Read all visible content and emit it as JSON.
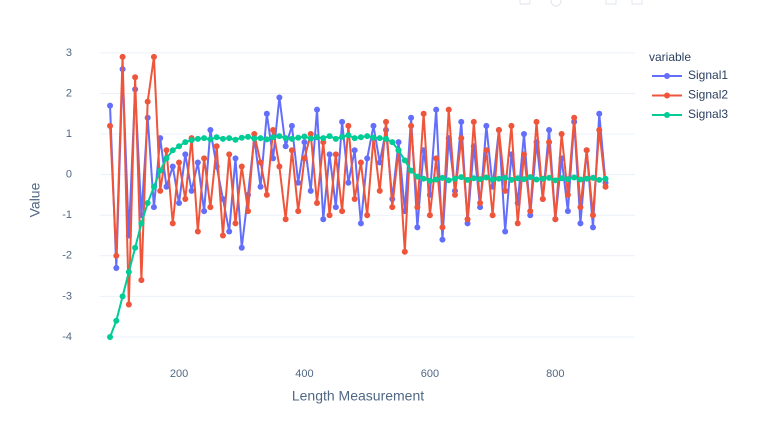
{
  "chart_data": {
    "type": "line",
    "xlabel": "Length Measurement",
    "ylabel": "Value",
    "legend_title": "variable",
    "x": [
      90,
      100,
      110,
      120,
      130,
      140,
      150,
      160,
      170,
      180,
      190,
      200,
      210,
      220,
      230,
      240,
      250,
      260,
      270,
      280,
      290,
      300,
      310,
      320,
      330,
      340,
      350,
      360,
      370,
      380,
      390,
      400,
      410,
      420,
      430,
      440,
      450,
      460,
      470,
      480,
      490,
      500,
      510,
      520,
      530,
      540,
      550,
      560,
      570,
      580,
      590,
      600,
      610,
      620,
      630,
      640,
      650,
      660,
      670,
      680,
      690,
      700,
      710,
      720,
      730,
      740,
      750,
      760,
      770,
      780,
      790,
      800,
      810,
      820,
      830,
      840,
      850,
      860,
      870,
      880
    ],
    "series": [
      {
        "name": "Signal1",
        "color": "#636efa",
        "values": [
          1.7,
          -2.3,
          2.6,
          -1.5,
          2.1,
          -1.0,
          1.4,
          -0.8,
          0.9,
          -0.3,
          0.2,
          -0.7,
          0.5,
          -0.4,
          0.3,
          -0.9,
          1.1,
          0.2,
          -0.6,
          -1.4,
          0.4,
          -1.8,
          -0.5,
          0.9,
          -0.3,
          1.5,
          0.4,
          1.9,
          0.7,
          1.2,
          -0.2,
          0.8,
          -0.4,
          1.6,
          -1.1,
          0.5,
          -0.8,
          1.3,
          -0.2,
          0.6,
          -1.2,
          0.4,
          1.2,
          0.3,
          1.1,
          -0.6,
          0.8,
          -0.9,
          1.4,
          -1.3,
          0.6,
          -0.5,
          1.6,
          -1.6,
          0.9,
          -0.4,
          1.3,
          -1.2,
          0.7,
          -0.8,
          1.2,
          -0.3,
          1.1,
          -1.4,
          0.5,
          -0.7,
          1.0,
          -1.0,
          0.8,
          -0.6,
          1.1,
          -1.1,
          0.4,
          -0.9,
          1.3,
          -1.2,
          0.6,
          -1.3,
          1.5,
          -0.2
        ]
      },
      {
        "name": "Signal2",
        "color": "#EF553B",
        "values": [
          1.2,
          -2.0,
          2.9,
          -3.2,
          2.4,
          -2.6,
          1.8,
          2.9,
          -0.4,
          0.6,
          -1.2,
          0.3,
          -0.6,
          0.9,
          -1.4,
          0.4,
          -0.8,
          0.7,
          -1.5,
          0.5,
          -1.2,
          0.2,
          -0.9,
          1.0,
          0.3,
          -0.5,
          1.1,
          0.2,
          -1.1,
          0.6,
          -0.9,
          0.4,
          1.0,
          -0.7,
          0.8,
          -1.0,
          0.5,
          -0.9,
          1.2,
          -0.6,
          0.3,
          -1.0,
          0.9,
          -0.4,
          1.3,
          -0.8,
          0.6,
          -1.9,
          1.2,
          -0.8,
          1.5,
          -1.0,
          0.4,
          -1.3,
          1.6,
          -0.5,
          0.9,
          -1.1,
          1.3,
          -0.7,
          0.6,
          -1.0,
          1.1,
          -0.4,
          1.2,
          -1.2,
          0.5,
          -0.9,
          1.3,
          -0.6,
          0.8,
          -1.1,
          1.0,
          -0.5,
          1.4,
          -0.8,
          0.6,
          -1.0,
          1.1,
          -0.3
        ]
      },
      {
        "name": "Signal3",
        "color": "#00cc96",
        "values": [
          -4,
          -3.6,
          -3.0,
          -2.4,
          -1.8,
          -1.2,
          -0.7,
          -0.3,
          0.1,
          0.4,
          0.6,
          0.7,
          0.8,
          0.85,
          0.88,
          0.9,
          0.87,
          0.92,
          0.88,
          0.9,
          0.86,
          0.91,
          0.93,
          0.89,
          0.9,
          0.87,
          0.92,
          0.95,
          0.9,
          0.88,
          0.91,
          0.94,
          0.89,
          0.92,
          0.9,
          0.95,
          0.88,
          0.93,
          0.97,
          0.9,
          0.92,
          0.95,
          0.91,
          0.9,
          0.88,
          0.8,
          0.6,
          0.35,
          0.1,
          -0.05,
          -0.1,
          -0.15,
          -0.12,
          -0.08,
          -0.14,
          -0.1,
          -0.06,
          -0.13,
          -0.09,
          -0.11,
          -0.07,
          -0.12,
          -0.1,
          -0.08,
          -0.13,
          -0.09,
          -0.11,
          -0.06,
          -0.12,
          -0.1,
          -0.08,
          -0.14,
          -0.09,
          -0.11,
          -0.07,
          -0.12,
          -0.1,
          -0.08,
          -0.13,
          -0.1
        ]
      }
    ],
    "xlim": [
      74,
      927
    ],
    "xticks": [
      200,
      400,
      600,
      800
    ],
    "ylim": [
      -4.69,
      3.44
    ],
    "yticks": [
      -4,
      -3,
      -2,
      -1,
      0,
      1,
      2,
      3
    ],
    "grid": true,
    "legend": "right",
    "markers": true
  }
}
